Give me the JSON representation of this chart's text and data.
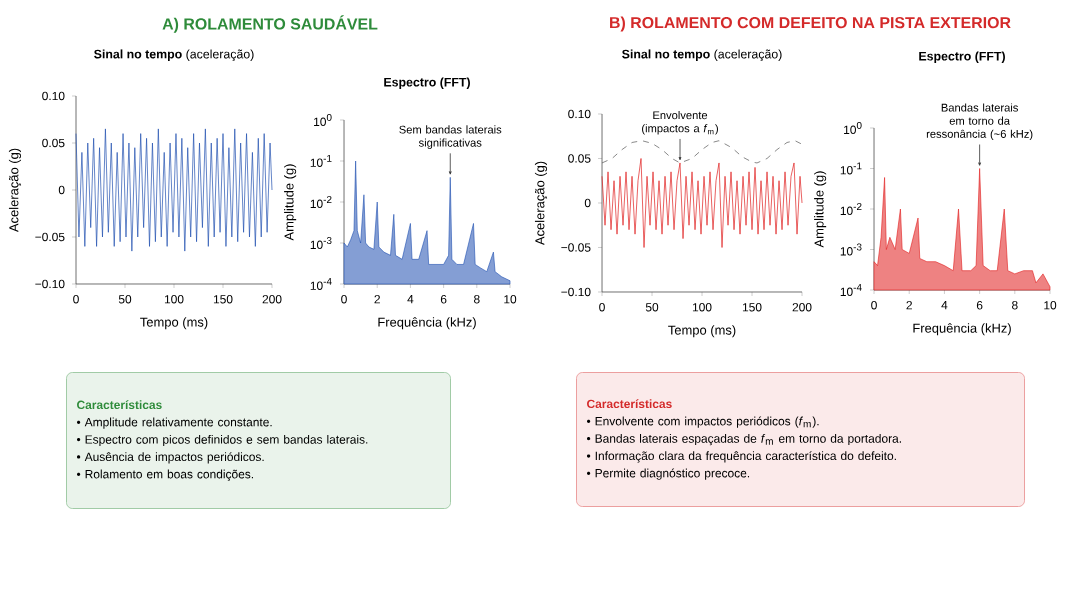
{
  "chart_data": [
    {
      "type": "line",
      "title": "A) ROLAMENTO SAUDÁVEL",
      "subtitle": "**Sinal no tempo** (aceleração)",
      "xlabel": "Tempo (ms)",
      "ylabel": "Aceleração (g)",
      "xlim": [
        0,
        200
      ],
      "ylim": [
        -0.1,
        0.1
      ],
      "xticks": [
        0,
        50,
        100,
        150,
        200
      ],
      "yticks": [
        {
          "value": -0.1,
          "label": "−0.10"
        },
        {
          "value": -0.05,
          "label": "−0.05"
        },
        {
          "value": 0,
          "label": "0"
        },
        {
          "value": 0.05,
          "label": "0.05"
        },
        {
          "value": 0.1,
          "label": "0.10"
        }
      ],
      "series": [
        {
          "color": "#1f4fb0",
          "x": [
            0,
            3,
            6,
            9,
            12,
            15,
            18,
            21,
            24,
            27,
            30,
            33,
            36,
            39,
            42,
            45,
            48,
            51,
            54,
            57,
            60,
            63,
            66,
            69,
            72,
            75,
            78,
            81,
            84,
            87,
            90,
            93,
            96,
            99,
            102,
            105,
            108,
            111,
            114,
            117,
            120,
            123,
            126,
            129,
            132,
            135,
            138,
            141,
            144,
            147,
            150,
            153,
            156,
            159,
            162,
            165,
            168,
            171,
            174,
            177,
            180,
            183,
            186,
            189,
            192,
            195,
            198,
            200
          ],
          "values": [
            0.06,
            -0.05,
            0.04,
            -0.06,
            0.05,
            -0.04,
            0.055,
            -0.06,
            0.045,
            -0.05,
            0.065,
            -0.045,
            0.05,
            -0.06,
            0.04,
            -0.055,
            0.06,
            -0.05,
            0.05,
            -0.065,
            0.045,
            -0.05,
            0.06,
            -0.04,
            0.055,
            -0.06,
            0.05,
            -0.055,
            0.065,
            -0.05,
            0.04,
            -0.06,
            0.05,
            -0.045,
            0.06,
            -0.05,
            0.055,
            -0.065,
            0.045,
            -0.05,
            0.06,
            -0.055,
            0.05,
            -0.04,
            0.065,
            -0.06,
            0.05,
            -0.05,
            0.055,
            -0.045,
            0.06,
            -0.06,
            0.045,
            -0.05,
            0.065,
            -0.055,
            0.05,
            -0.045,
            0.06,
            -0.05,
            0.04,
            -0.06,
            0.055,
            -0.05,
            0.06,
            -0.045,
            0.05,
            0.0
          ]
        }
      ]
    },
    {
      "type": "area",
      "title": "Espectro (FFT)",
      "xlabel": "Frequência (kHz)",
      "ylabel": "Amplitude (g)",
      "log": true,
      "xlim": [
        0,
        10
      ],
      "ylim": [
        0.0001,
        1
      ],
      "xticks": [
        0,
        2,
        4,
        6,
        8,
        10
      ],
      "yticks": [
        {
          "value": 0.0001,
          "label": "10$^{-4}$"
        },
        {
          "value": 0.001,
          "label": "10$^{-3}$"
        },
        {
          "value": 0.01,
          "label": "10$^{-2}$"
        },
        {
          "value": 0.1,
          "label": "10$^{-1}$"
        },
        {
          "value": 1,
          "label": "10$^{0}$"
        }
      ],
      "annotations": [
        {
          "text": "Sem bandas laterais significativas",
          "x": 6.4,
          "y": 0.04
        }
      ],
      "series": [
        {
          "color": "#1f4fb0",
          "x": [
            0,
            0.2,
            0.4,
            0.6,
            0.7,
            0.8,
            1.0,
            1.2,
            1.3,
            1.5,
            1.8,
            2.0,
            2.1,
            2.4,
            2.8,
            3.0,
            3.1,
            3.5,
            4.0,
            4.1,
            4.5,
            5.0,
            5.1,
            5.5,
            6.0,
            6.3,
            6.4,
            6.5,
            6.8,
            7.2,
            7.8,
            7.9,
            8.2,
            8.6,
            9.0,
            9.1,
            9.5,
            10
          ],
          "values": [
            0.001,
            0.0008,
            0.0012,
            0.002,
            0.1,
            0.002,
            0.001,
            0.015,
            0.001,
            0.0008,
            0.0007,
            0.01,
            0.0008,
            0.0006,
            0.0005,
            0.005,
            0.0005,
            0.0004,
            0.003,
            0.0004,
            0.0004,
            0.002,
            0.0003,
            0.0003,
            0.0003,
            0.0005,
            0.04,
            0.0004,
            0.0003,
            0.0003,
            0.003,
            0.0003,
            0.00025,
            0.0002,
            0.0006,
            0.0002,
            0.00015,
            0.00012
          ]
        }
      ]
    },
    {
      "type": "other",
      "title": "Características",
      "color": "#2e8b3a",
      "annotations": [
        "• Amplitude relativamente constante.",
        "• Espectro com picos definidos e sem bandas laterais.",
        "• Ausência de impactos periódicos.",
        "• Rolamento em boas condições."
      ]
    },
    {
      "type": "line",
      "title": "B) ROLAMENTO COM DEFEITO NA PISTA EXTERIOR",
      "subtitle": "**Sinal no tempo** (aceleração)",
      "xlabel": "Tempo (ms)",
      "ylabel": "Aceleração (g)",
      "xlim": [
        0,
        200
      ],
      "ylim": [
        -0.1,
        0.1
      ],
      "xticks": [
        0,
        50,
        100,
        150,
        200
      ],
      "yticks": [
        {
          "value": -0.1,
          "label": "−0.10"
        },
        {
          "value": -0.05,
          "label": "−0.05"
        },
        {
          "value": 0,
          "label": "0"
        },
        {
          "value": 0.05,
          "label": "0.05"
        },
        {
          "value": 0.1,
          "label": "0.10"
        }
      ],
      "annotations": [
        {
          "text": "Envolvente (impactos a *f*$_{m}$)",
          "x": 78,
          "y": 0.045
        }
      ],
      "series": [
        {
          "color": "#e01b1b",
          "x": [
            0,
            3,
            6,
            9,
            12,
            15,
            18,
            21,
            24,
            27,
            30,
            33,
            36,
            39,
            42,
            45,
            48,
            51,
            54,
            57,
            60,
            63,
            66,
            69,
            72,
            75,
            78,
            81,
            84,
            87,
            90,
            93,
            96,
            99,
            102,
            105,
            108,
            111,
            114,
            117,
            120,
            123,
            126,
            129,
            132,
            135,
            138,
            141,
            144,
            147,
            150,
            153,
            156,
            159,
            162,
            165,
            168,
            171,
            174,
            177,
            180,
            183,
            186,
            189,
            192,
            195,
            198,
            200
          ],
          "values": [
            0.03,
            -0.025,
            0.035,
            -0.03,
            0.025,
            -0.035,
            0.03,
            -0.025,
            0.035,
            -0.03,
            0.03,
            -0.035,
            0.025,
            0.05,
            -0.05,
            0.03,
            -0.025,
            0.035,
            -0.03,
            0.025,
            -0.035,
            0.03,
            -0.025,
            0.035,
            -0.03,
            0.025,
            0.045,
            -0.04,
            0.03,
            -0.025,
            0.035,
            -0.03,
            0.025,
            -0.035,
            0.03,
            -0.025,
            0.035,
            -0.03,
            0.025,
            0.045,
            -0.05,
            0.03,
            -0.025,
            0.035,
            -0.03,
            0.025,
            -0.035,
            0.03,
            -0.025,
            0.035,
            -0.03,
            0.04,
            -0.035,
            0.025,
            -0.03,
            0.035,
            -0.025,
            0.03,
            -0.035,
            0.025,
            -0.03,
            0.035,
            -0.025,
            0.03,
            0.045,
            -0.035,
            0.03,
            0.0
          ]
        },
        {
          "color": "#555555",
          "line_style": "dashed",
          "x": [
            0,
            10,
            20,
            30,
            40,
            50,
            60,
            70,
            78,
            90,
            100,
            110,
            117,
            130,
            140,
            150,
            155,
            165,
            175,
            185,
            193,
            200
          ],
          "values": [
            0.045,
            0.05,
            0.06,
            0.068,
            0.07,
            0.067,
            0.06,
            0.05,
            0.045,
            0.05,
            0.06,
            0.068,
            0.07,
            0.062,
            0.052,
            0.046,
            0.045,
            0.05,
            0.06,
            0.068,
            0.07,
            0.066
          ]
        }
      ]
    },
    {
      "type": "area",
      "title": "Espectro (FFT)",
      "xlabel": "Frequência (kHz)",
      "ylabel": "Amplitude (g)",
      "log": true,
      "xlim": [
        0,
        10
      ],
      "ylim": [
        0.0001,
        1
      ],
      "xticks": [
        0,
        2,
        4,
        6,
        8,
        10
      ],
      "yticks": [
        {
          "value": 0.0001,
          "label": "10$^{-4}$"
        },
        {
          "value": 0.001,
          "label": "10$^{-3}$"
        },
        {
          "value": 0.01,
          "label": "10$^{-2}$"
        },
        {
          "value": 0.1,
          "label": "10$^{-1}$"
        },
        {
          "value": 1,
          "label": "10$^{0}$"
        }
      ],
      "annotations": [
        {
          "text": "Bandas laterais em torno da ressonância (~6 kHz)",
          "x": 6,
          "y": 0.1
        }
      ],
      "series": [
        {
          "color": "#e01b1b",
          "x": [
            0,
            0.2,
            0.4,
            0.6,
            0.7,
            0.9,
            1.2,
            1.5,
            1.6,
            2.0,
            2.5,
            2.6,
            3.0,
            3.5,
            4.0,
            4.5,
            4.8,
            5.0,
            5.5,
            5.8,
            6.0,
            6.2,
            6.6,
            7.0,
            7.4,
            7.6,
            8.0,
            8.5,
            9.0,
            9.2,
            9.6,
            10
          ],
          "values": [
            0.0005,
            0.0004,
            0.002,
            0.06,
            0.001,
            0.002,
            0.001,
            0.01,
            0.001,
            0.0008,
            0.006,
            0.0006,
            0.0005,
            0.0005,
            0.0004,
            0.0003,
            0.01,
            0.0003,
            0.0003,
            0.0004,
            0.1,
            0.0004,
            0.0003,
            0.0003,
            0.01,
            0.0003,
            0.00025,
            0.0003,
            0.0003,
            0.00015,
            0.00025,
            0.00012
          ]
        }
      ]
    },
    {
      "type": "other",
      "title": "Características",
      "color": "#d42a2a",
      "annotations": [
        "• Envolvente com impactos periódicos (*f*$_{m}$).",
        "• Bandas laterais espaçadas de *f*$_{m}$ em torno da portadora.",
        "• Informação clara da frequência característica do defeito.",
        "• Permite diagnóstico precoce."
      ]
    }
  ]
}
